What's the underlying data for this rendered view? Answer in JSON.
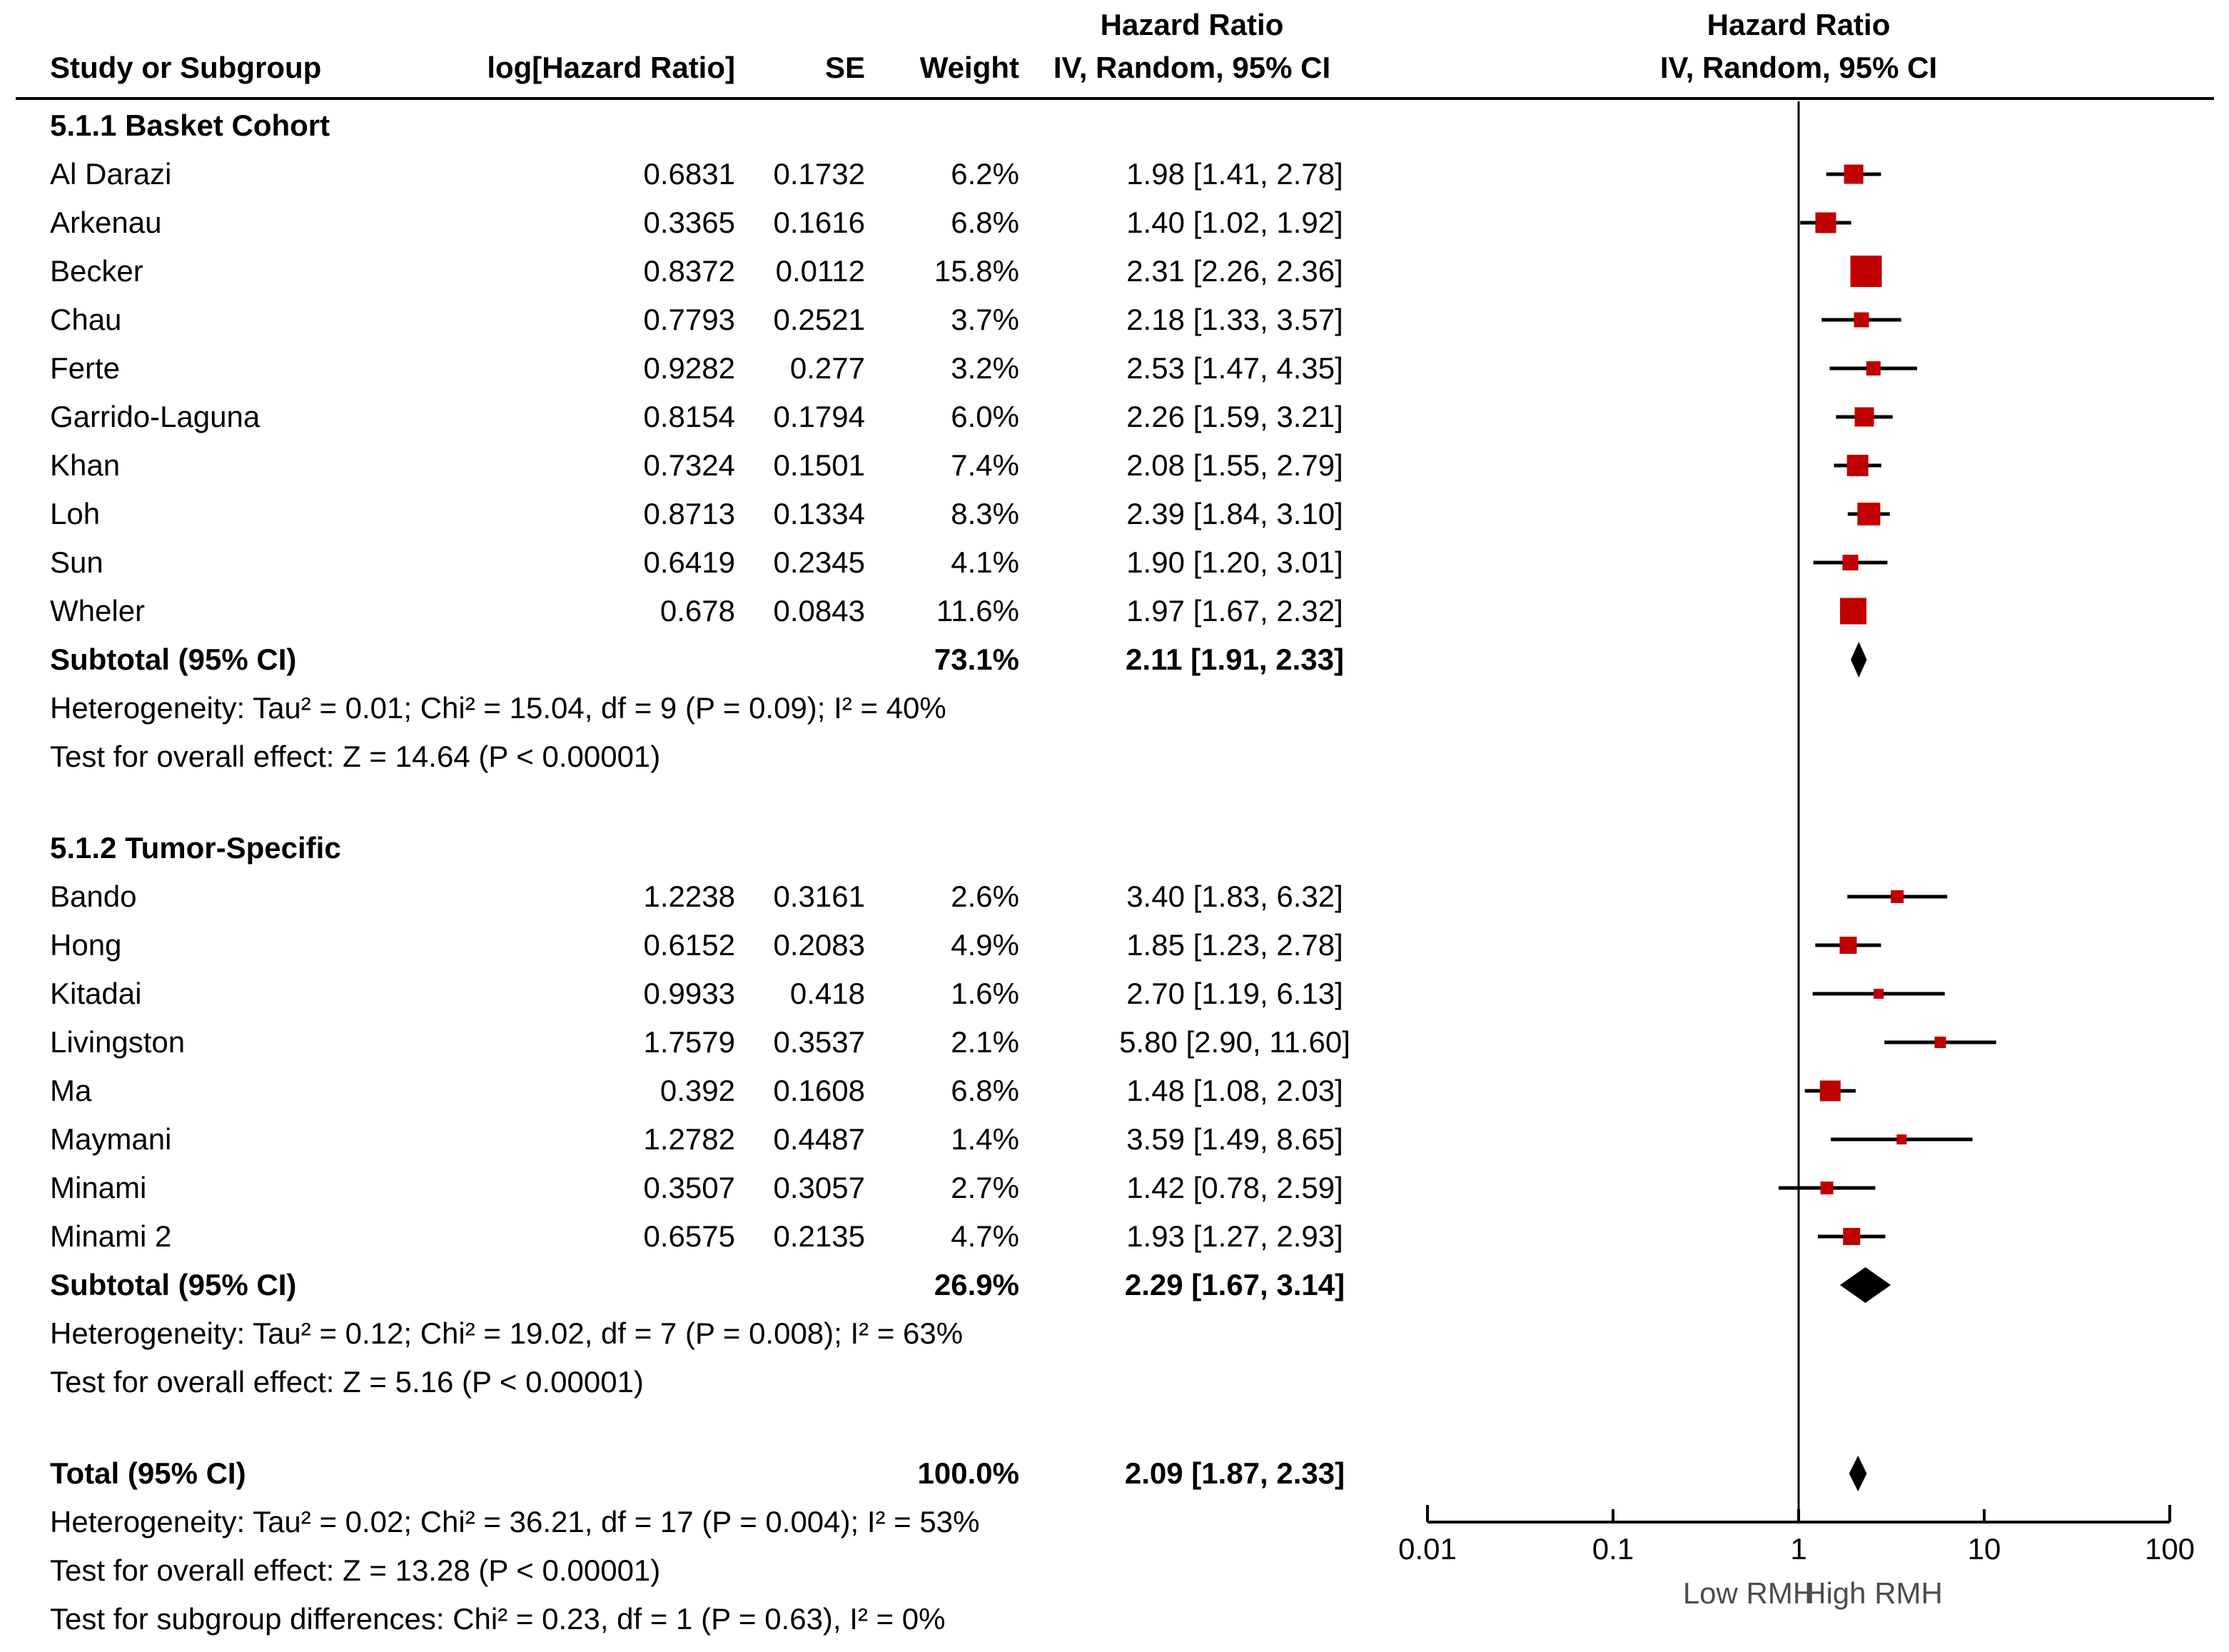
{
  "header": {
    "hr_title_left": "Hazard Ratio",
    "hr_title_right": "Hazard Ratio",
    "col_study": "Study or Subgroup",
    "col_log_hr": "log[Hazard Ratio]",
    "col_se": "SE",
    "col_weight": "Weight",
    "col_ci_left": "IV, Random, 95% CI",
    "col_ci_right": "IV, Random, 95% CI"
  },
  "chart_data": {
    "type": "forest",
    "x_scale": "log",
    "x_range": [
      0.01,
      100
    ],
    "x_ticks": [
      0.01,
      0.1,
      1,
      10,
      100
    ],
    "x_tick_labels": [
      "0.01",
      "0.1",
      "1",
      "10",
      "100"
    ],
    "x_label_left": "Low RMH",
    "x_label_right": "High RMH",
    "marker_color": "#c00000",
    "line_color": "#000000",
    "groups": [
      {
        "name": "5.1.1 Basket Cohort",
        "studies": [
          {
            "study": "Al Darazi",
            "log_hr": "0.6831",
            "se": "0.1732",
            "weight": "6.2%",
            "weight_pct": 6.2,
            "ci_text": "1.98 [1.41, 2.78]",
            "hr": 1.98,
            "ci": [
              1.41,
              2.78
            ]
          },
          {
            "study": "Arkenau",
            "log_hr": "0.3365",
            "se": "0.1616",
            "weight": "6.8%",
            "weight_pct": 6.8,
            "ci_text": "1.40 [1.02, 1.92]",
            "hr": 1.4,
            "ci": [
              1.02,
              1.92
            ]
          },
          {
            "study": "Becker",
            "log_hr": "0.8372",
            "se": "0.0112",
            "weight": "15.8%",
            "weight_pct": 15.8,
            "ci_text": "2.31 [2.26, 2.36]",
            "hr": 2.31,
            "ci": [
              2.26,
              2.36
            ]
          },
          {
            "study": "Chau",
            "log_hr": "0.7793",
            "se": "0.2521",
            "weight": "3.7%",
            "weight_pct": 3.7,
            "ci_text": "2.18 [1.33, 3.57]",
            "hr": 2.18,
            "ci": [
              1.33,
              3.57
            ]
          },
          {
            "study": "Ferte",
            "log_hr": "0.9282",
            "se": "0.277",
            "weight": "3.2%",
            "weight_pct": 3.2,
            "ci_text": "2.53 [1.47, 4.35]",
            "hr": 2.53,
            "ci": [
              1.47,
              4.35
            ]
          },
          {
            "study": "Garrido-Laguna",
            "log_hr": "0.8154",
            "se": "0.1794",
            "weight": "6.0%",
            "weight_pct": 6.0,
            "ci_text": "2.26 [1.59, 3.21]",
            "hr": 2.26,
            "ci": [
              1.59,
              3.21
            ]
          },
          {
            "study": "Khan",
            "log_hr": "0.7324",
            "se": "0.1501",
            "weight": "7.4%",
            "weight_pct": 7.4,
            "ci_text": "2.08 [1.55, 2.79]",
            "hr": 2.08,
            "ci": [
              1.55,
              2.79
            ]
          },
          {
            "study": "Loh",
            "log_hr": "0.8713",
            "se": "0.1334",
            "weight": "8.3%",
            "weight_pct": 8.3,
            "ci_text": "2.39 [1.84, 3.10]",
            "hr": 2.39,
            "ci": [
              1.84,
              3.1
            ]
          },
          {
            "study": "Sun",
            "log_hr": "0.6419",
            "se": "0.2345",
            "weight": "4.1%",
            "weight_pct": 4.1,
            "ci_text": "1.90 [1.20, 3.01]",
            "hr": 1.9,
            "ci": [
              1.2,
              3.01
            ]
          },
          {
            "study": "Wheler",
            "log_hr": "0.678",
            "se": "0.0843",
            "weight": "11.6%",
            "weight_pct": 11.6,
            "ci_text": "1.97 [1.67, 2.32]",
            "hr": 1.97,
            "ci": [
              1.67,
              2.32
            ]
          }
        ],
        "subtotal": {
          "label": "Subtotal (95% CI)",
          "weight": "73.1%",
          "ci_text": "2.11 [1.91, 2.33]",
          "hr": 2.11,
          "ci": [
            1.91,
            2.33
          ]
        },
        "heterogeneity": "Heterogeneity: Tau² = 0.01; Chi² = 15.04, df = 9 (P = 0.09); I² = 40%",
        "overall_effect": "Test for overall effect: Z = 14.64 (P < 0.00001)"
      },
      {
        "name": "5.1.2 Tumor-Specific",
        "studies": [
          {
            "study": "Bando",
            "log_hr": "1.2238",
            "se": "0.3161",
            "weight": "2.6%",
            "weight_pct": 2.6,
            "ci_text": "3.40 [1.83, 6.32]",
            "hr": 3.4,
            "ci": [
              1.83,
              6.32
            ]
          },
          {
            "study": "Hong",
            "log_hr": "0.6152",
            "se": "0.2083",
            "weight": "4.9%",
            "weight_pct": 4.9,
            "ci_text": "1.85 [1.23, 2.78]",
            "hr": 1.85,
            "ci": [
              1.23,
              2.78
            ]
          },
          {
            "study": "Kitadai",
            "log_hr": "0.9933",
            "se": "0.418",
            "weight": "1.6%",
            "weight_pct": 1.6,
            "ci_text": "2.70 [1.19, 6.13]",
            "hr": 2.7,
            "ci": [
              1.19,
              6.13
            ]
          },
          {
            "study": "Livingston",
            "log_hr": "1.7579",
            "se": "0.3537",
            "weight": "2.1%",
            "weight_pct": 2.1,
            "ci_text": "5.80 [2.90, 11.60]",
            "hr": 5.8,
            "ci": [
              2.9,
              11.6
            ]
          },
          {
            "study": "Ma",
            "log_hr": "0.392",
            "se": "0.1608",
            "weight": "6.8%",
            "weight_pct": 6.8,
            "ci_text": "1.48 [1.08, 2.03]",
            "hr": 1.48,
            "ci": [
              1.08,
              2.03
            ]
          },
          {
            "study": "Maymani",
            "log_hr": "1.2782",
            "se": "0.4487",
            "weight": "1.4%",
            "weight_pct": 1.4,
            "ci_text": "3.59 [1.49, 8.65]",
            "hr": 3.59,
            "ci": [
              1.49,
              8.65
            ]
          },
          {
            "study": "Minami",
            "log_hr": "0.3507",
            "se": "0.3057",
            "weight": "2.7%",
            "weight_pct": 2.7,
            "ci_text": "1.42 [0.78, 2.59]",
            "hr": 1.42,
            "ci": [
              0.78,
              2.59
            ]
          },
          {
            "study": "Minami 2",
            "log_hr": "0.6575",
            "se": "0.2135",
            "weight": "4.7%",
            "weight_pct": 4.7,
            "ci_text": "1.93 [1.27, 2.93]",
            "hr": 1.93,
            "ci": [
              1.27,
              2.93
            ]
          }
        ],
        "subtotal": {
          "label": "Subtotal (95% CI)",
          "weight": "26.9%",
          "ci_text": "2.29 [1.67, 3.14]",
          "hr": 2.29,
          "ci": [
            1.67,
            3.14
          ]
        },
        "heterogeneity": "Heterogeneity: Tau² = 0.12; Chi² = 19.02, df = 7 (P = 0.008); I² = 63%",
        "overall_effect": "Test for overall effect: Z = 5.16 (P < 0.00001)"
      }
    ],
    "total": {
      "label": "Total (95% CI)",
      "weight": "100.0%",
      "ci_text": "2.09 [1.87, 2.33]",
      "hr": 2.09,
      "ci": [
        1.87,
        2.33
      ]
    },
    "total_heterogeneity": "Heterogeneity: Tau² = 0.02; Chi² = 36.21, df = 17 (P = 0.004); I² = 53%",
    "total_overall_effect": "Test for overall effect: Z = 13.28 (P < 0.00001)",
    "subgroup_differences": "Test for subgroup differences: Chi² = 0.23, df = 1 (P = 0.63), I² = 0%"
  }
}
